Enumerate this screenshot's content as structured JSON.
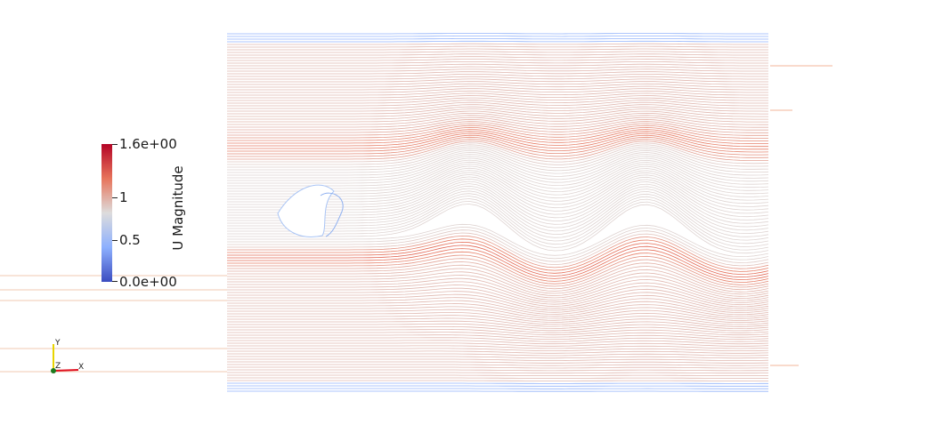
{
  "colorbar": {
    "title": "U Magnitude",
    "ticks": [
      {
        "label": "1.6e+00",
        "value": 1.6
      },
      {
        "label": "1",
        "value": 1.0
      },
      {
        "label": "0.5",
        "value": 0.5
      },
      {
        "label": "0.0e+00",
        "value": 0.0
      }
    ],
    "range": [
      0.0,
      1.6
    ],
    "colormap": [
      "#3b4cc0",
      "#8db0fe",
      "#dddcdc",
      "#e7745b",
      "#b40426"
    ]
  },
  "axes": {
    "x": "X",
    "y": "Y",
    "z": "Z"
  },
  "colors": {
    "background": "#ffffff",
    "slow": "#3b4cc0",
    "mid": "#dddcdc",
    "fast": "#b40426"
  }
}
